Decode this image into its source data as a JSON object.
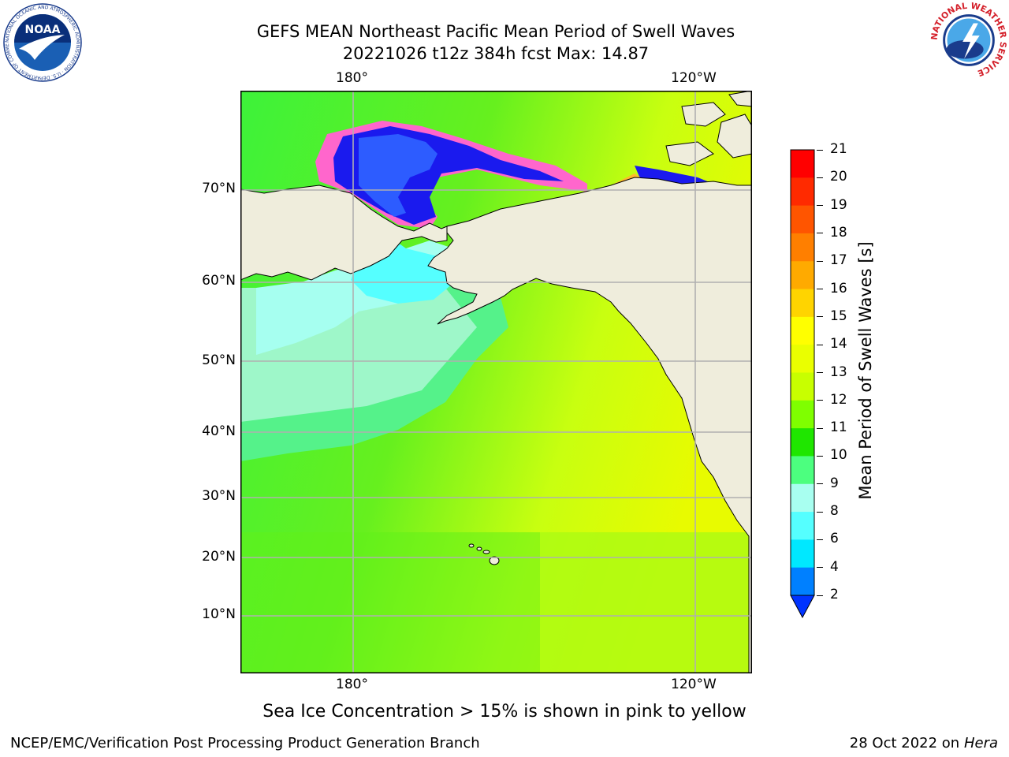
{
  "header": {
    "title_line1": "GEFS MEAN Northeast Pacific Mean Period of Swell Waves",
    "title_line2": "20221026 t12z 384h fcst   Max: 14.87"
  },
  "map": {
    "lon_labels": [
      "180°",
      "120°W"
    ],
    "lat_labels": [
      "70°N",
      "60°N",
      "50°N",
      "40°N",
      "30°N",
      "20°N",
      "10°N"
    ]
  },
  "colorbar": {
    "title": "Mean Period of Swell Waves [s]",
    "ticks": [
      "21",
      "20",
      "19",
      "18",
      "17",
      "16",
      "15",
      "14",
      "13",
      "12",
      "11",
      "10",
      "9",
      "8",
      "6",
      "4",
      "2"
    ],
    "colors": [
      "#ff0000",
      "#ff2a00",
      "#ff5500",
      "#ff7f00",
      "#ffaa00",
      "#ffd400",
      "#ffff00",
      "#eaff00",
      "#c8ff00",
      "#7fff00",
      "#1fe600",
      "#4cff7f",
      "#a8fff0",
      "#55ffff",
      "#00e8ff",
      "#0080ff",
      "#0033ff"
    ]
  },
  "caption": "Sea Ice Concentration > 15% is shown in pink to yellow",
  "footer": {
    "left": "NCEP/EMC/Verification Post Processing Product Generation Branch",
    "right_prefix": "28 Oct 2022 on ",
    "right_host": "Hera"
  },
  "logos": {
    "noaa": "NOAA",
    "noaa_ring": "NATIONAL OCEANIC AND ATMOSPHERIC ADMINISTRATION · U.S. DEPARTMENT OF COMMERCE",
    "nws_ring": "NATIONAL WEATHER SERVICE"
  }
}
